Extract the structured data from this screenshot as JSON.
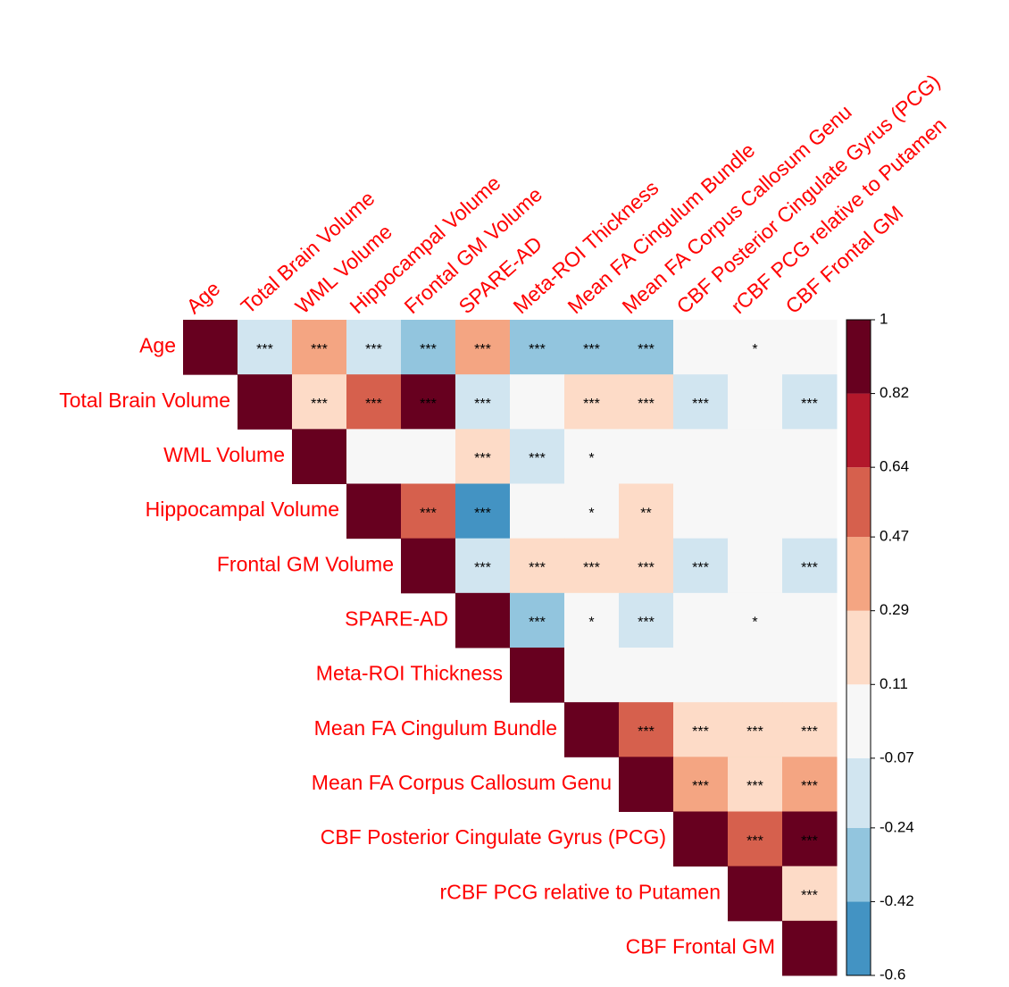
{
  "chart_data": {
    "type": "heatmap",
    "variables": [
      "Age",
      "Total Brain Volume",
      "WML Volume",
      "Hippocampal Volume",
      "Frontal GM Volume",
      "SPARE-AD",
      "Meta-ROI Thickness",
      "Mean FA Cingulum Bundle",
      "Mean FA Corpus Callosum Genu",
      "CBF Posterior Cingulate Gyrus (PCG)",
      "rCBF PCG relative to Putamen",
      "CBF Frontal GM"
    ],
    "values": [
      [
        1,
        -0.15,
        0.38,
        -0.15,
        -0.33,
        0.38,
        -0.33,
        -0.33,
        -0.33,
        0.02,
        0.05,
        0.0
      ],
      [
        null,
        1,
        0.2,
        0.55,
        0.9,
        -0.15,
        0.02,
        0.2,
        0.2,
        -0.15,
        0.0,
        -0.15
      ],
      [
        null,
        null,
        1,
        0.0,
        0.0,
        0.2,
        -0.15,
        0.05,
        0.0,
        0.0,
        0.0,
        0.0
      ],
      [
        null,
        null,
        null,
        1,
        0.55,
        -0.5,
        0.0,
        0.05,
        0.15,
        0.0,
        0.0,
        0.0
      ],
      [
        null,
        null,
        null,
        null,
        1,
        -0.15,
        0.2,
        0.2,
        0.2,
        -0.15,
        0.0,
        -0.15
      ],
      [
        null,
        null,
        null,
        null,
        null,
        1,
        -0.33,
        0.05,
        -0.15,
        0.0,
        -0.05,
        0.0
      ],
      [
        null,
        null,
        null,
        null,
        null,
        null,
        1,
        0.0,
        0.0,
        0.0,
        0.0,
        0.0
      ],
      [
        null,
        null,
        null,
        null,
        null,
        null,
        null,
        1,
        0.55,
        0.2,
        0.2,
        0.2
      ],
      [
        null,
        null,
        null,
        null,
        null,
        null,
        null,
        null,
        1,
        0.38,
        0.2,
        0.38
      ],
      [
        null,
        null,
        null,
        null,
        null,
        null,
        null,
        null,
        null,
        1,
        0.55,
        0.9
      ],
      [
        null,
        null,
        null,
        null,
        null,
        null,
        null,
        null,
        null,
        null,
        1,
        0.2
      ],
      [
        null,
        null,
        null,
        null,
        null,
        null,
        null,
        null,
        null,
        null,
        null,
        1
      ]
    ],
    "significance": [
      [
        null,
        "***",
        "***",
        "***",
        "***",
        "***",
        "***",
        "***",
        "***",
        null,
        "*",
        null
      ],
      [
        null,
        null,
        "***",
        "***",
        "***",
        "***",
        null,
        "***",
        "***",
        "***",
        null,
        "***"
      ],
      [
        null,
        null,
        null,
        null,
        null,
        "***",
        "***",
        "*",
        null,
        null,
        null,
        null
      ],
      [
        null,
        null,
        null,
        null,
        "***",
        "***",
        null,
        "*",
        "**",
        null,
        null,
        null
      ],
      [
        null,
        null,
        null,
        null,
        null,
        "***",
        "***",
        "***",
        "***",
        "***",
        null,
        "***"
      ],
      [
        null,
        null,
        null,
        null,
        null,
        null,
        "***",
        "*",
        "***",
        null,
        "*",
        null
      ],
      [
        null,
        null,
        null,
        null,
        null,
        null,
        null,
        null,
        null,
        null,
        null,
        null
      ],
      [
        null,
        null,
        null,
        null,
        null,
        null,
        null,
        null,
        "***",
        "***",
        "***",
        "***"
      ],
      [
        null,
        null,
        null,
        null,
        null,
        null,
        null,
        null,
        null,
        "***",
        "***",
        "***"
      ],
      [
        null,
        null,
        null,
        null,
        null,
        null,
        null,
        null,
        null,
        null,
        "***",
        "***"
      ],
      [
        null,
        null,
        null,
        null,
        null,
        null,
        null,
        null,
        null,
        null,
        null,
        "***"
      ],
      [
        null,
        null,
        null,
        null,
        null,
        null,
        null,
        null,
        null,
        null,
        null,
        null
      ]
    ],
    "clim": [
      -0.6,
      1
    ],
    "cticks": [
      1,
      0.82,
      0.64,
      0.47,
      0.29,
      0.11,
      -0.07,
      -0.24,
      -0.42,
      -0.6
    ],
    "colors": [
      "#4393c3",
      "#92c5de",
      "#d1e5f0",
      "#f7f7f7",
      "#fddbc7",
      "#f4a582",
      "#d6604d",
      "#b2182b",
      "#67001f"
    ],
    "label_color": "#ff0000"
  }
}
